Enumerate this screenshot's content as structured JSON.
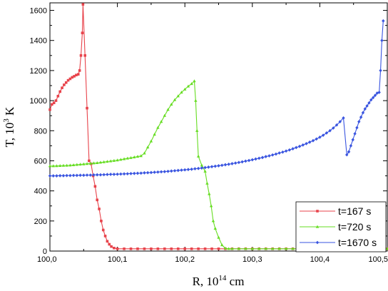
{
  "chart_data": {
    "type": "line",
    "xlabel_base": "R, 10",
    "xlabel_exp": "14",
    "xlabel_unit": " cm",
    "ylabel_base": "T, 10",
    "ylabel_exp": "3",
    "ylabel_unit": " K",
    "xlim": [
      100.0,
      100.5
    ],
    "ylim": [
      0,
      1650
    ],
    "xticks": [
      100.0,
      100.1,
      100.2,
      100.3,
      100.4,
      100.5
    ],
    "xtick_labels": [
      "100,0",
      "100,1",
      "100,2",
      "100,3",
      "100,4",
      "100,5"
    ],
    "yticks": [
      0,
      200,
      400,
      600,
      800,
      1000,
      1200,
      1400,
      1600
    ],
    "ytick_labels": [
      "0",
      "200",
      "400",
      "600",
      "800",
      "1000",
      "1200",
      "1400",
      "1600"
    ],
    "legend_position": "bottom-right",
    "series": [
      {
        "name": "t=167 s",
        "color": "#e8434b",
        "marker": "square",
        "points": [
          [
            100.0,
            940
          ],
          [
            100.003,
            975
          ],
          [
            100.006,
            985
          ],
          [
            100.009,
            1000
          ],
          [
            100.012,
            1030
          ],
          [
            100.015,
            1060
          ],
          [
            100.018,
            1085
          ],
          [
            100.021,
            1105
          ],
          [
            100.024,
            1120
          ],
          [
            100.027,
            1135
          ],
          [
            100.03,
            1145
          ],
          [
            100.033,
            1155
          ],
          [
            100.036,
            1162
          ],
          [
            100.039,
            1170
          ],
          [
            100.042,
            1175
          ],
          [
            100.044,
            1200
          ],
          [
            100.046,
            1300
          ],
          [
            100.048,
            1450
          ],
          [
            100.049,
            1640
          ],
          [
            100.052,
            1300
          ],
          [
            100.055,
            950
          ],
          [
            100.058,
            600
          ],
          [
            100.061,
            580
          ],
          [
            100.064,
            500
          ],
          [
            100.067,
            430
          ],
          [
            100.07,
            340
          ],
          [
            100.073,
            280
          ],
          [
            100.076,
            200
          ],
          [
            100.079,
            140
          ],
          [
            100.082,
            100
          ],
          [
            100.085,
            65
          ],
          [
            100.088,
            45
          ],
          [
            100.091,
            30
          ],
          [
            100.095,
            20
          ],
          [
            100.1,
            15
          ],
          [
            100.11,
            15
          ],
          [
            100.12,
            15
          ],
          [
            100.13,
            15
          ],
          [
            100.14,
            15
          ],
          [
            100.15,
            15
          ],
          [
            100.16,
            15
          ],
          [
            100.17,
            15
          ],
          [
            100.18,
            15
          ],
          [
            100.19,
            15
          ],
          [
            100.2,
            15
          ],
          [
            100.21,
            15
          ],
          [
            100.22,
            15
          ],
          [
            100.23,
            15
          ],
          [
            100.24,
            15
          ],
          [
            100.25,
            15
          ],
          [
            100.26,
            15
          ],
          [
            100.27,
            15
          ],
          [
            100.28,
            15
          ],
          [
            100.29,
            15
          ],
          [
            100.3,
            15
          ],
          [
            100.31,
            15
          ],
          [
            100.32,
            15
          ],
          [
            100.33,
            15
          ],
          [
            100.34,
            15
          ],
          [
            100.35,
            15
          ],
          [
            100.36,
            15
          ],
          [
            100.37,
            15
          ],
          [
            100.38,
            15
          ],
          [
            100.39,
            15
          ],
          [
            100.4,
            15
          ],
          [
            100.41,
            15
          ],
          [
            100.42,
            15
          ],
          [
            100.43,
            15
          ],
          [
            100.44,
            15
          ],
          [
            100.45,
            15
          ],
          [
            100.46,
            15
          ],
          [
            100.47,
            15
          ],
          [
            100.48,
            15
          ],
          [
            100.49,
            15
          ],
          [
            100.5,
            15
          ]
        ]
      },
      {
        "name": "t=720 s",
        "color": "#66dd22",
        "marker": "triangle",
        "points": [
          [
            100.0,
            565
          ],
          [
            100.005,
            565
          ],
          [
            100.01,
            566
          ],
          [
            100.015,
            567
          ],
          [
            100.02,
            568
          ],
          [
            100.025,
            569
          ],
          [
            100.03,
            570
          ],
          [
            100.035,
            572
          ],
          [
            100.04,
            574
          ],
          [
            100.045,
            576
          ],
          [
            100.05,
            578
          ],
          [
            100.055,
            580
          ],
          [
            100.06,
            582
          ],
          [
            100.065,
            584
          ],
          [
            100.07,
            586
          ],
          [
            100.075,
            589
          ],
          [
            100.08,
            592
          ],
          [
            100.085,
            595
          ],
          [
            100.09,
            598
          ],
          [
            100.095,
            601
          ],
          [
            100.1,
            604
          ],
          [
            100.105,
            608
          ],
          [
            100.11,
            612
          ],
          [
            100.115,
            616
          ],
          [
            100.12,
            620
          ],
          [
            100.125,
            624
          ],
          [
            100.13,
            628
          ],
          [
            100.135,
            632
          ],
          [
            100.14,
            650
          ],
          [
            100.145,
            690
          ],
          [
            100.15,
            730
          ],
          [
            100.155,
            775
          ],
          [
            100.16,
            820
          ],
          [
            100.165,
            860
          ],
          [
            100.17,
            900
          ],
          [
            100.175,
            940
          ],
          [
            100.18,
            975
          ],
          [
            100.185,
            1005
          ],
          [
            100.19,
            1030
          ],
          [
            100.195,
            1055
          ],
          [
            100.2,
            1075
          ],
          [
            100.205,
            1095
          ],
          [
            100.21,
            1112
          ],
          [
            100.214,
            1130
          ],
          [
            100.216,
            1000
          ],
          [
            100.218,
            800
          ],
          [
            100.22,
            630
          ],
          [
            100.225,
            570
          ],
          [
            100.23,
            530
          ],
          [
            100.233,
            450
          ],
          [
            100.236,
            380
          ],
          [
            100.239,
            300
          ],
          [
            100.242,
            200
          ],
          [
            100.245,
            150
          ],
          [
            100.25,
            90
          ],
          [
            100.255,
            40
          ],
          [
            100.26,
            18
          ],
          [
            100.265,
            15
          ],
          [
            100.27,
            15
          ],
          [
            100.28,
            15
          ],
          [
            100.29,
            15
          ],
          [
            100.3,
            15
          ],
          [
            100.31,
            15
          ],
          [
            100.32,
            15
          ],
          [
            100.33,
            15
          ],
          [
            100.34,
            15
          ],
          [
            100.35,
            15
          ],
          [
            100.36,
            15
          ],
          [
            100.37,
            15
          ],
          [
            100.38,
            15
          ],
          [
            100.39,
            15
          ],
          [
            100.4,
            15
          ],
          [
            100.41,
            15
          ],
          [
            100.42,
            15
          ],
          [
            100.43,
            15
          ],
          [
            100.44,
            15
          ],
          [
            100.45,
            15
          ],
          [
            100.46,
            15
          ],
          [
            100.47,
            15
          ],
          [
            100.48,
            15
          ],
          [
            100.49,
            15
          ],
          [
            100.5,
            15
          ]
        ]
      },
      {
        "name": "t=1670 s",
        "color": "#3a55e0",
        "marker": "diamond",
        "points": [
          [
            100.0,
            500
          ],
          [
            100.005,
            500
          ],
          [
            100.01,
            500
          ],
          [
            100.015,
            501
          ],
          [
            100.02,
            501
          ],
          [
            100.025,
            502
          ],
          [
            100.03,
            502
          ],
          [
            100.035,
            503
          ],
          [
            100.04,
            503
          ],
          [
            100.045,
            504
          ],
          [
            100.05,
            504
          ],
          [
            100.055,
            505
          ],
          [
            100.06,
            505
          ],
          [
            100.065,
            506
          ],
          [
            100.07,
            507
          ],
          [
            100.075,
            507
          ],
          [
            100.08,
            508
          ],
          [
            100.085,
            509
          ],
          [
            100.09,
            510
          ],
          [
            100.095,
            510
          ],
          [
            100.1,
            511
          ],
          [
            100.105,
            512
          ],
          [
            100.11,
            513
          ],
          [
            100.115,
            514
          ],
          [
            100.12,
            515
          ],
          [
            100.125,
            516
          ],
          [
            100.13,
            517
          ],
          [
            100.135,
            518
          ],
          [
            100.14,
            520
          ],
          [
            100.145,
            521
          ],
          [
            100.15,
            522
          ],
          [
            100.155,
            524
          ],
          [
            100.16,
            525
          ],
          [
            100.165,
            527
          ],
          [
            100.17,
            528
          ],
          [
            100.175,
            530
          ],
          [
            100.18,
            532
          ],
          [
            100.185,
            534
          ],
          [
            100.19,
            536
          ],
          [
            100.195,
            538
          ],
          [
            100.2,
            540
          ],
          [
            100.205,
            542
          ],
          [
            100.21,
            544
          ],
          [
            100.215,
            547
          ],
          [
            100.22,
            549
          ],
          [
            100.225,
            552
          ],
          [
            100.23,
            555
          ],
          [
            100.235,
            558
          ],
          [
            100.24,
            561
          ],
          [
            100.245,
            564
          ],
          [
            100.25,
            567
          ],
          [
            100.255,
            570
          ],
          [
            100.26,
            574
          ],
          [
            100.265,
            577
          ],
          [
            100.27,
            581
          ],
          [
            100.275,
            585
          ],
          [
            100.28,
            589
          ],
          [
            100.285,
            593
          ],
          [
            100.29,
            598
          ],
          [
            100.295,
            602
          ],
          [
            100.3,
            607
          ],
          [
            100.305,
            612
          ],
          [
            100.31,
            617
          ],
          [
            100.315,
            622
          ],
          [
            100.32,
            628
          ],
          [
            100.325,
            633
          ],
          [
            100.33,
            639
          ],
          [
            100.335,
            645
          ],
          [
            100.34,
            652
          ],
          [
            100.345,
            658
          ],
          [
            100.35,
            665
          ],
          [
            100.355,
            672
          ],
          [
            100.36,
            680
          ],
          [
            100.365,
            688
          ],
          [
            100.37,
            696
          ],
          [
            100.375,
            705
          ],
          [
            100.38,
            714
          ],
          [
            100.385,
            724
          ],
          [
            100.39,
            734
          ],
          [
            100.395,
            745
          ],
          [
            100.4,
            757
          ],
          [
            100.405,
            770
          ],
          [
            100.41,
            785
          ],
          [
            100.415,
            800
          ],
          [
            100.42,
            818
          ],
          [
            100.425,
            838
          ],
          [
            100.43,
            860
          ],
          [
            100.435,
            885
          ],
          [
            100.44,
            640
          ],
          [
            100.443,
            660
          ],
          [
            100.446,
            700
          ],
          [
            100.449,
            740
          ],
          [
            100.452,
            780
          ],
          [
            100.455,
            820
          ],
          [
            100.458,
            860
          ],
          [
            100.461,
            890
          ],
          [
            100.464,
            920
          ],
          [
            100.467,
            945
          ],
          [
            100.47,
            965
          ],
          [
            100.473,
            985
          ],
          [
            100.476,
            1005
          ],
          [
            100.479,
            1020
          ],
          [
            100.482,
            1035
          ],
          [
            100.485,
            1050
          ],
          [
            100.488,
            1055
          ],
          [
            100.49,
            1200
          ],
          [
            100.492,
            1400
          ],
          [
            100.494,
            1530
          ]
        ]
      }
    ]
  }
}
